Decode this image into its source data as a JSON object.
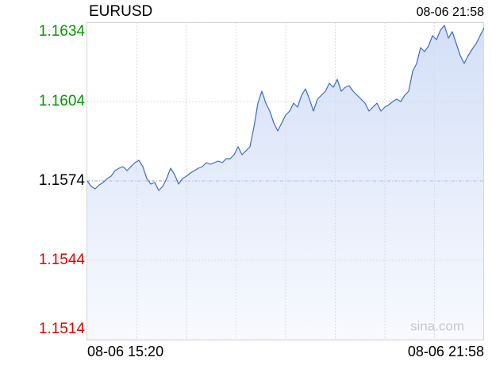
{
  "chart_data": {
    "type": "area",
    "title": "EURUSD",
    "timestamp": "08-06 21:58",
    "watermark": "sina.com",
    "color": "#3a6cc4",
    "fill": "#cfdcf7",
    "reference": 1.1574,
    "up_color": "#009a00",
    "down_color": "#e60000",
    "base_color": "#000000",
    "grid": true,
    "ylim": [
      1.1514,
      1.1634
    ],
    "yticks": [
      1.1634,
      1.1604,
      1.1574,
      1.1544,
      1.1514
    ],
    "categories": [
      "08-06 15:20",
      null,
      null,
      null,
      null,
      null,
      null,
      null,
      null,
      null,
      null,
      null,
      null,
      null,
      null,
      null,
      null,
      null,
      null,
      null,
      null,
      null,
      null,
      null,
      null,
      null,
      null,
      null,
      null,
      null,
      null,
      null,
      null,
      null,
      null,
      null,
      null,
      null,
      null,
      null,
      null,
      null,
      null,
      null,
      null,
      null,
      null,
      null,
      null,
      null,
      null,
      null,
      null,
      null,
      null,
      null,
      null,
      null,
      null,
      null,
      null,
      null,
      null,
      null,
      null,
      null,
      null,
      null,
      null,
      null,
      null,
      null,
      null,
      null,
      null,
      null,
      null,
      null,
      null,
      null,
      null,
      null,
      null,
      null,
      null,
      null,
      null,
      null,
      null,
      null,
      null,
      null,
      null,
      null,
      null,
      null,
      null,
      null,
      null,
      null,
      "08-06 21:58"
    ],
    "values": [
      1.1574,
      1.15719,
      1.1571,
      1.15725,
      1.15734,
      1.15749,
      1.15758,
      1.15779,
      1.15788,
      1.15794,
      1.15779,
      1.15794,
      1.15809,
      1.15818,
      1.15794,
      1.15749,
      1.15728,
      1.15734,
      1.15704,
      1.15719,
      1.15749,
      1.15788,
      1.15764,
      1.15728,
      1.15749,
      1.15758,
      1.1577,
      1.15779,
      1.15788,
      1.15794,
      1.15809,
      1.15803,
      1.15809,
      1.15815,
      1.15809,
      1.15824,
      1.15824,
      1.15839,
      1.15869,
      1.15839,
      1.15854,
      1.15869,
      1.15944,
      1.16034,
      1.16079,
      1.16034,
      1.16004,
      1.15959,
      1.15929,
      1.15959,
      1.15989,
      1.16004,
      1.16034,
      1.16019,
      1.16064,
      1.16088,
      1.16049,
      1.16004,
      1.16049,
      1.16064,
      1.16079,
      1.16109,
      1.16094,
      1.16124,
      1.16079,
      1.16094,
      1.161,
      1.16079,
      1.16064,
      1.16049,
      1.16034,
      1.16004,
      1.16019,
      1.16034,
      1.16004,
      1.16019,
      1.16028,
      1.1604,
      1.16049,
      1.1604,
      1.16064,
      1.16079,
      1.16154,
      1.16184,
      1.16244,
      1.16229,
      1.1625,
      1.16289,
      1.16274,
      1.1631,
      1.16328,
      1.1628,
      1.16304,
      1.16259,
      1.16214,
      1.16184,
      1.16214,
      1.16238,
      1.16259,
      1.16289,
      1.16319
    ]
  }
}
